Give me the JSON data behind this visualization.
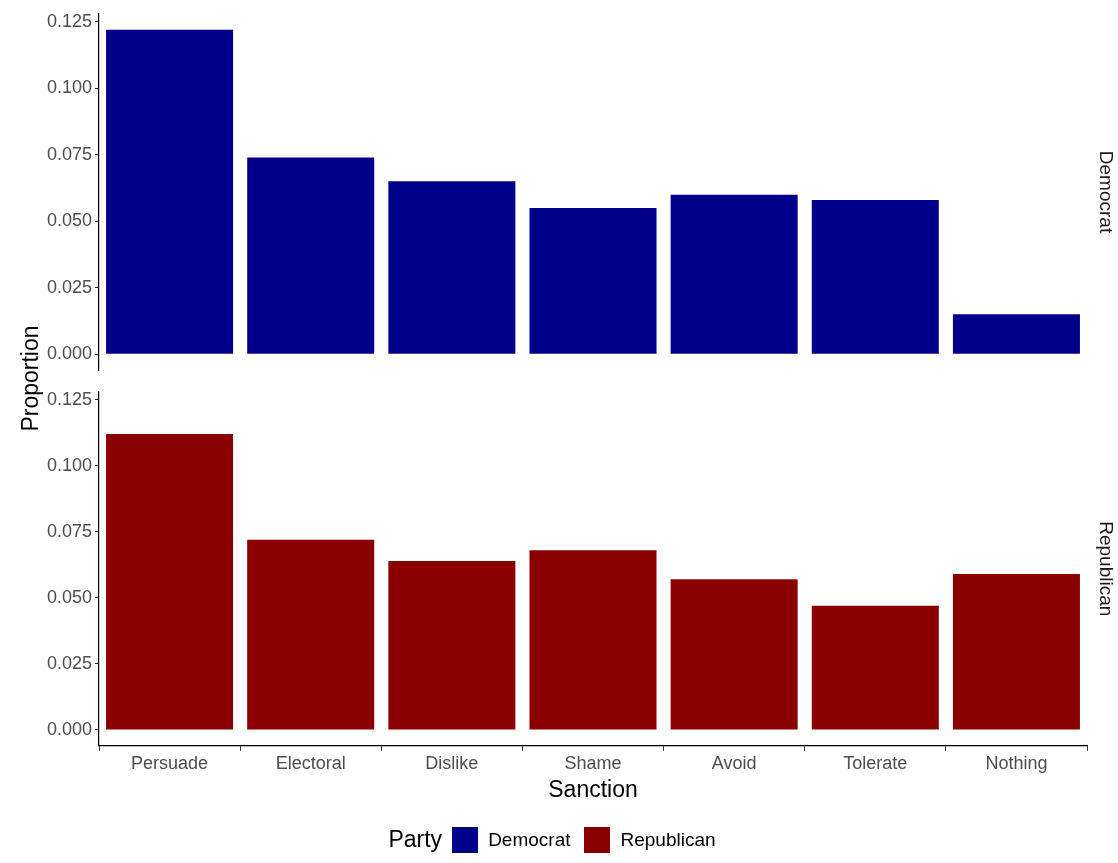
{
  "chart_data": [
    {
      "type": "bar",
      "ylabel": "Proportion",
      "categories": [
        null,
        null,
        null,
        null,
        null,
        null,
        null
      ],
      "series": [
        {
          "name": "Democrat",
          "color": "#00008b",
          "values": [
            0.122,
            0.074,
            0.065,
            0.055,
            0.06,
            0.058,
            0.015
          ]
        }
      ],
      "ylim": [
        -0.006,
        0.128
      ],
      "yticks": [
        {
          "value": 0,
          "label": "0.000"
        },
        {
          "value": 0.025,
          "label": "0.025"
        },
        {
          "value": 0.05,
          "label": "0.050"
        },
        {
          "value": 0.075,
          "label": "0.075"
        },
        {
          "value": 0.1,
          "label": "0.100"
        },
        {
          "value": 0.125,
          "label": "0.125"
        }
      ],
      "tick_labels": "y",
      "legend": "bottom",
      "legend_title": "Party"
    },
    {
      "type": "bar",
      "xlabel": "Sanction",
      "categories": [
        "Persuade",
        "Electoral",
        "Dislike",
        "Shame",
        "Avoid",
        "Tolerate",
        "Nothing"
      ],
      "series": [
        {
          "name": "Republican",
          "color": "#8b0000",
          "values": [
            0.112,
            0.072,
            0.064,
            0.068,
            0.057,
            0.047,
            0.059
          ]
        }
      ],
      "ylim": [
        -0.006,
        0.128
      ],
      "yticks": [
        {
          "value": 0,
          "label": "0.000"
        },
        {
          "value": 0.025,
          "label": "0.025"
        },
        {
          "value": 0.05,
          "label": "0.050"
        },
        {
          "value": 0.075,
          "label": "0.075"
        },
        {
          "value": 0.1,
          "label": "0.100"
        },
        {
          "value": 0.125,
          "label": "0.125"
        }
      ],
      "legend": "bottom"
    }
  ]
}
